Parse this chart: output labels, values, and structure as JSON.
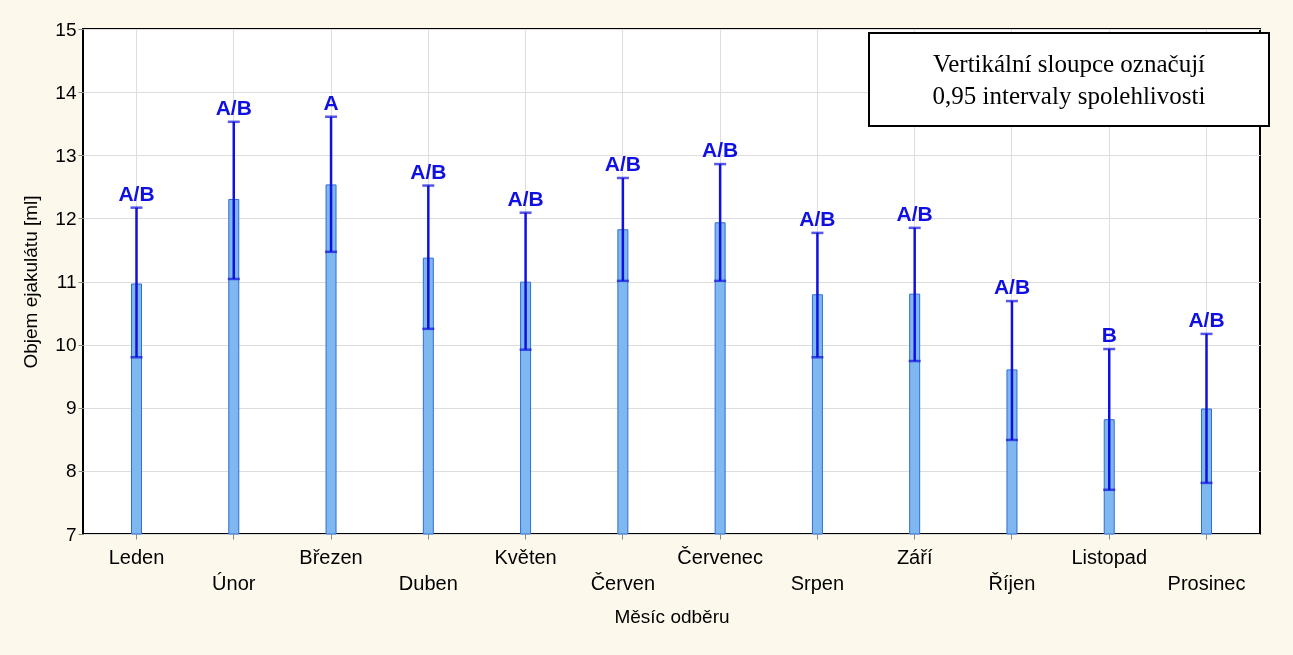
{
  "chart_data": {
    "type": "bar",
    "xlabel": "Měsíc odběru",
    "ylabel": "Objem ejakulátu [ml]",
    "categories": [
      "Leden",
      "Únor",
      "Březen",
      "Duben",
      "Květen",
      "Červen",
      "Červenec",
      "Srpen",
      "Září",
      "Říjen",
      "Listopad",
      "Prosinec"
    ],
    "series": [
      {
        "color": "#7fb8f0",
        "values": [
          10.96,
          12.3,
          12.53,
          11.37,
          10.99,
          11.82,
          11.93,
          10.79,
          10.8,
          9.6,
          8.81,
          8.98
        ],
        "errors": [
          [
            9.8,
            12.17
          ],
          [
            11.04,
            13.53
          ],
          [
            11.47,
            13.61
          ],
          [
            10.25,
            12.52
          ],
          [
            9.92,
            12.09
          ],
          [
            11.01,
            12.64
          ],
          [
            11.01,
            12.86
          ],
          [
            9.8,
            11.77
          ],
          [
            9.74,
            11.85
          ],
          [
            8.49,
            10.69
          ],
          [
            7.7,
            9.93
          ],
          [
            7.81,
            10.17
          ]
        ]
      }
    ],
    "ylim": [
      7,
      15
    ],
    "yticks": [
      7,
      8,
      9,
      10,
      11,
      12,
      13,
      14,
      15
    ],
    "grid": true,
    "annotations": [
      {
        "text": "A/B",
        "x": "Leden",
        "y": 12.17
      },
      {
        "text": "A/B",
        "x": "Únor",
        "y": 13.53
      },
      {
        "text": "A",
        "x": "Březen",
        "y": 13.61
      },
      {
        "text": "A/B",
        "x": "Duben",
        "y": 12.52
      },
      {
        "text": "A/B",
        "x": "Květen",
        "y": 12.09
      },
      {
        "text": "A/B",
        "x": "Červen",
        "y": 12.64
      },
      {
        "text": "A/B",
        "x": "Červenec",
        "y": 12.86
      },
      {
        "text": "A/B",
        "x": "Srpen",
        "y": 11.77
      },
      {
        "text": "A/B",
        "x": "Září",
        "y": 11.85
      },
      {
        "text": "A/B",
        "x": "Říjen",
        "y": 10.69
      },
      {
        "text": "B",
        "x": "Listopad",
        "y": 9.93
      },
      {
        "text": "A/B",
        "x": "Prosinec",
        "y": 10.17
      },
      "Vertikální sloupce označují\n0,95 intervaly spolehlivosti"
    ]
  }
}
